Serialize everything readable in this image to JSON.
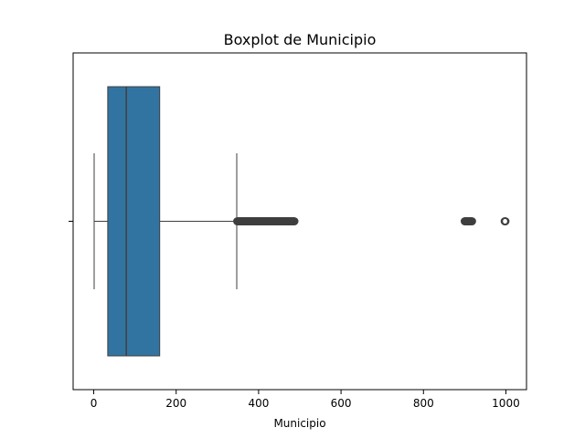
{
  "chart_data": {
    "type": "boxplot",
    "title": "Boxplot de Municipio",
    "xlabel": "Municipio",
    "ylabel": "",
    "xlim": [
      -50,
      1050
    ],
    "xticks": [
      0,
      200,
      400,
      600,
      800,
      1000
    ],
    "grid": false,
    "box": {
      "whisker_low": 1,
      "q1": 34,
      "median": 79,
      "q3": 160,
      "whisker_high": 347
    },
    "outlier_ranges": [
      {
        "from": 348,
        "to": 487
      },
      {
        "from": 900,
        "to": 918
      },
      {
        "from": 997,
        "to": 999
      }
    ],
    "colors": {
      "box_fill": "#3274a1",
      "line": "#3f3f3f",
      "outlier_edge": "#3f3f3f"
    }
  }
}
